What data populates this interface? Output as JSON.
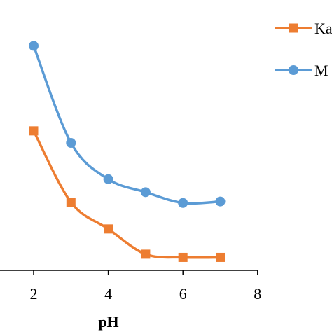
{
  "chart_data": {
    "type": "line",
    "title": "",
    "xlabel": "pH",
    "ylabel": "",
    "xlim": [
      0,
      8
    ],
    "x_ticks": [
      "2",
      "4",
      "6",
      "8"
    ],
    "x_tick_values": [
      2,
      4,
      6,
      8
    ],
    "grid": false,
    "legend_position": "right",
    "series": [
      {
        "name": "Ka",
        "color": "#ed7d31",
        "marker": "square",
        "x": [
          2,
          3,
          4,
          5,
          6,
          7
        ],
        "y": [
          0.569,
          0.278,
          0.169,
          0.066,
          0.053,
          0.053
        ]
      },
      {
        "name": "M",
        "color": "#5b9bd5",
        "marker": "circle",
        "x": [
          2,
          3,
          4,
          5,
          6,
          7
        ],
        "y": [
          0.916,
          0.52,
          0.372,
          0.319,
          0.275,
          0.281
        ]
      }
    ]
  }
}
